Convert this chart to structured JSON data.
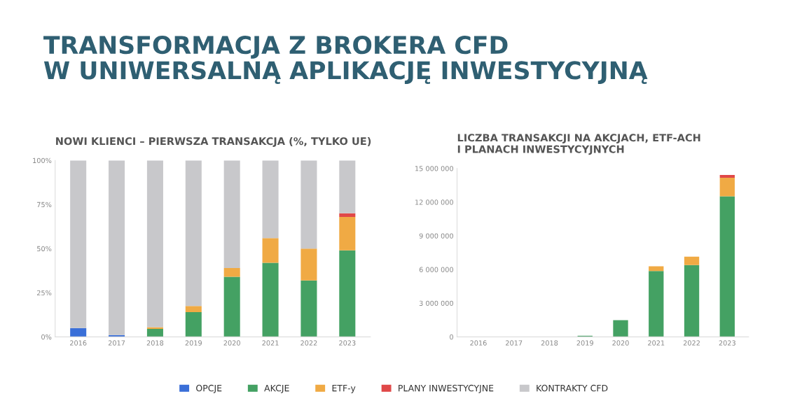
{
  "chart_data": [
    {
      "type": "bar",
      "title": "NOWI KLIENCI – PIERWSZA TRANSAKCJA (%, TYLKO UE)",
      "annotations": [
        "TRANSFORMACJA Z BROKERA CFD\nW UNIWERSALNĄ APLIKACJĘ INWESTYCYJNĄ"
      ],
      "stacked": true,
      "legend": "bottom",
      "categories": [
        "2016",
        "2017",
        "2018",
        "2019",
        "2020",
        "2021",
        "2022",
        "2023"
      ],
      "ylim": [
        0,
        100
      ],
      "yticks": [
        {
          "value": 0,
          "label": "0%"
        },
        {
          "value": 25,
          "label": "25%"
        },
        {
          "value": 50,
          "label": "50%"
        },
        {
          "value": 75,
          "label": "75%"
        },
        {
          "value": 100,
          "label": "100%"
        }
      ],
      "series": [
        {
          "name": "OPCJE",
          "color": "#3a6fd8",
          "values": [
            5,
            1,
            0,
            0,
            0,
            0,
            0,
            0
          ]
        },
        {
          "name": "AKCJE",
          "color": "#44a163",
          "values": [
            0,
            0,
            4.5,
            14,
            34,
            42,
            32,
            49
          ]
        },
        {
          "name": "ETF-y",
          "color": "#f0aa44",
          "values": [
            0,
            0,
            1,
            3.5,
            5,
            14,
            18,
            19
          ]
        },
        {
          "name": "PLANY INWESTYCYJNE",
          "color": "#e04848",
          "values": [
            0,
            0,
            0,
            0,
            0,
            0,
            0,
            2
          ]
        },
        {
          "name": "KONTRAKTY CFD",
          "color": "#c8c8cb",
          "values": [
            95,
            99,
            94.5,
            82.5,
            61,
            44,
            50,
            30
          ]
        }
      ]
    },
    {
      "type": "bar",
      "title": "LICZBA TRANSAKCJI NA AKCJACH, ETF-ACH\nI PLANACH INWESTYCYJNYCH",
      "stacked": true,
      "categories": [
        "2016",
        "2017",
        "2018",
        "2019",
        "2020",
        "2021",
        "2022",
        "2023"
      ],
      "ylim": [
        0,
        15000000
      ],
      "yticks": [
        {
          "value": 0,
          "label": "0"
        },
        {
          "value": 3000000,
          "label": "3 000 000"
        },
        {
          "value": 6000000,
          "label": "6 000 000"
        },
        {
          "value": 9000000,
          "label": "9 000 000"
        },
        {
          "value": 12000000,
          "label": "12 000 000"
        },
        {
          "value": 15000000,
          "label": "15 000 000"
        }
      ],
      "series": [
        {
          "color": "#44a163",
          "values": [
            0,
            0,
            0,
            100000,
            1490000,
            5860000,
            6400000,
            12520000
          ]
        },
        {
          "color": "#f0aa44",
          "values": [
            0,
            0,
            null,
            0,
            null,
            430000,
            740000,
            1650000
          ]
        },
        {
          "color": "#e04848",
          "values": [
            0,
            0,
            0,
            0,
            0,
            0,
            0,
            250000
          ]
        }
      ]
    }
  ]
}
